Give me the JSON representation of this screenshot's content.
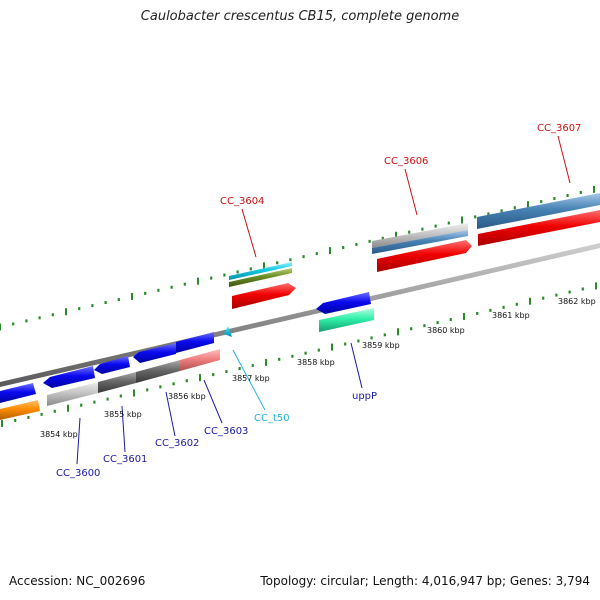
{
  "title": "Caulobacter crescentus CB15, complete genome",
  "footer": {
    "accession": "Accession: NC_002696",
    "stats": "Topology: circular; Length: 4,016,947 bp; Genes: 3,794"
  },
  "colors": {
    "backbone": "#8f8f8f",
    "tick": "#2a8a2a",
    "label_forward": "#cc1111",
    "label_reverse": "#1a1aa8",
    "label_rna": "#28b0e0"
  },
  "scale": {
    "ticks": [
      {
        "label": "3854 kbp"
      },
      {
        "label": "3855 kbp"
      },
      {
        "label": "3856 kbp"
      },
      {
        "label": "3857 kbp"
      },
      {
        "label": "3858 kbp"
      },
      {
        "label": "3859 kbp"
      },
      {
        "label": "3860 kbp"
      },
      {
        "label": "3861 kbp"
      },
      {
        "label": "3862 kbp"
      }
    ]
  },
  "genes": [
    {
      "name": "CC_3604",
      "strand": "forward",
      "color": "red-icon"
    },
    {
      "name": "CC_3606",
      "strand": "forward",
      "color": "red-icon"
    },
    {
      "name": "CC_3607",
      "strand": "forward",
      "color": "red-icon"
    },
    {
      "name": "CC_3600",
      "strand": "reverse",
      "color": "blue-icon"
    },
    {
      "name": "CC_3601",
      "strand": "reverse",
      "color": "blue-icon"
    },
    {
      "name": "CC_3602",
      "strand": "reverse",
      "color": "blue-icon"
    },
    {
      "name": "CC_3603",
      "strand": "reverse",
      "color": "blue-icon"
    },
    {
      "name": "CC_t50",
      "strand": "reverse",
      "color": "cyan-icon"
    },
    {
      "name": "uppP",
      "strand": "reverse",
      "color": "blue-icon"
    }
  ]
}
